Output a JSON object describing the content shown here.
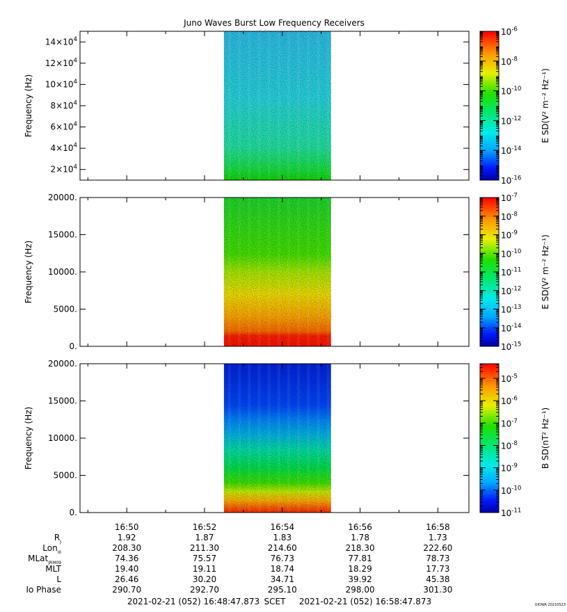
{
  "title": "Juno Waves Burst Low Frequency Receivers",
  "chart_data": [
    {
      "type": "heatmap",
      "ylabel": "Frequency (Hz)",
      "yticks": [
        "2×10^4",
        "4×10^4",
        "6×10^4",
        "8×10^4",
        "10×10^4",
        "12×10^4",
        "14×10^4"
      ],
      "ytick_values": [
        20000,
        40000,
        60000,
        80000,
        100000,
        120000,
        140000
      ],
      "ylim": [
        10000,
        150000
      ],
      "colorbar_label": "E SD(V² m⁻² Hz⁻¹)",
      "colorbar_ticks": [
        "10^-6",
        "10^-8",
        "10^-10",
        "10^-12",
        "10^-14",
        "10^-16"
      ],
      "colorbar_range_exp": [
        -16,
        -6
      ],
      "scale": "log",
      "data_interval": [
        "16:52:30",
        "16:55:15"
      ]
    },
    {
      "type": "heatmap",
      "ylabel": "Frequency (Hz)",
      "yticks": [
        "0.",
        "5000.",
        "10000.",
        "15000.",
        "20000."
      ],
      "ytick_values": [
        0,
        5000,
        10000,
        15000,
        20000
      ],
      "ylim": [
        0,
        20000
      ],
      "colorbar_label": "E SD(V² m⁻² Hz⁻¹)",
      "colorbar_ticks": [
        "10^-7",
        "10^-8",
        "10^-9",
        "10^-10",
        "10^-11",
        "10^-12",
        "10^-13",
        "10^-14",
        "10^-15"
      ],
      "colorbar_range_exp": [
        -15,
        -7
      ],
      "scale": "log",
      "data_interval": [
        "16:52:30",
        "16:55:15"
      ]
    },
    {
      "type": "heatmap",
      "ylabel": "Frequency (Hz)",
      "yticks": [
        "0.",
        "5000.",
        "10000.",
        "15000.",
        "20000."
      ],
      "ytick_values": [
        0,
        5000,
        10000,
        15000,
        20000
      ],
      "ylim": [
        0,
        20000
      ],
      "colorbar_label": "B SD(nT² Hz⁻¹)",
      "colorbar_ticks": [
        "10^-5",
        "10^-6",
        "10^-7",
        "10^-8",
        "10^-9",
        "10^-10",
        "10^-11"
      ],
      "colorbar_range_exp": [
        -11,
        -4.35
      ],
      "scale": "log",
      "data_interval": [
        "16:52:30",
        "16:55:15"
      ]
    }
  ],
  "xaxis": {
    "ticks": [
      "16:50",
      "16:52",
      "16:54",
      "16:56",
      "16:58"
    ],
    "range": [
      "16:48:47.873",
      "16:58:47.873"
    ]
  },
  "ephemeris": {
    "labels": [
      {
        "main": "R",
        "sub": "J"
      },
      {
        "main": "Lon",
        "sub": "III"
      },
      {
        "main": "MLat",
        "sub": "JRM09"
      },
      {
        "main": "MLT",
        "sub": ""
      },
      {
        "main": "L",
        "sub": ""
      },
      {
        "main": "Io Phase",
        "sub": ""
      }
    ],
    "rows": [
      [
        "1.92",
        "1.87",
        "1.83",
        "1.78",
        "1.73"
      ],
      [
        "208.30",
        "211.30",
        "214.60",
        "218.30",
        "222.60"
      ],
      [
        "74.36",
        "75.57",
        "76.73",
        "77.81",
        "78.73"
      ],
      [
        "19.40",
        "19.11",
        "18.74",
        "18.29",
        "17.73"
      ],
      [
        "26.46",
        "30.20",
        "34.71",
        "39.92",
        "45.38"
      ],
      [
        "290.70",
        "292.70",
        "295.10",
        "298.00",
        "301.30"
      ]
    ]
  },
  "footer": {
    "start": "2021-02-21 (052) 16:48:47.873",
    "mid": "SCET",
    "end": "2021-02-21 (052) 16:58:47.873"
  },
  "credit": "UIOWA 20210523"
}
